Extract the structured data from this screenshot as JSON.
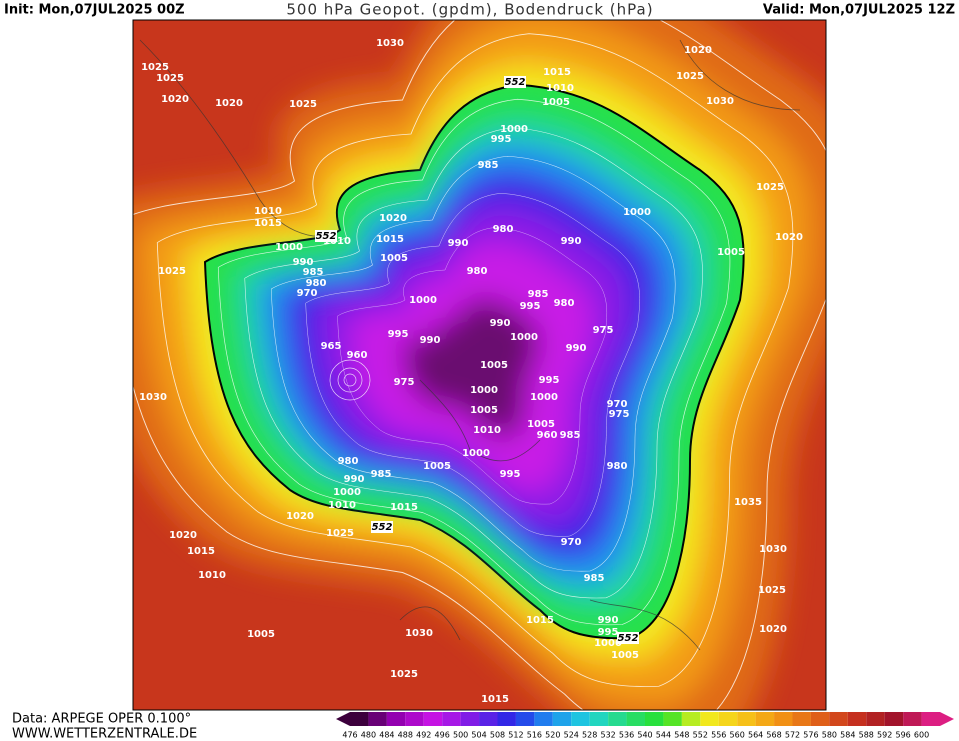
{
  "header": {
    "init": "Init: Mon,07JUL2025 00Z",
    "title": "500 hPa Geopot. (gpdm), Bodendruck (hPa)",
    "valid": "Valid: Mon,07JUL2025 12Z"
  },
  "footer": {
    "source": "Data: ARPEGE OPER 0.100°",
    "site": "WWW.WETTERZENTRALE.DE"
  },
  "colorbar": {
    "labels": [
      476,
      480,
      484,
      488,
      492,
      496,
      500,
      504,
      508,
      512,
      516,
      520,
      524,
      528,
      532,
      536,
      540,
      544,
      548,
      552,
      556,
      560,
      564,
      568,
      572,
      576,
      580,
      584,
      588,
      592,
      596,
      600
    ]
  },
  "map": {
    "isobar_labels": [
      1030,
      1025,
      1025,
      1020,
      1020,
      1025,
      1015,
      1010,
      1005,
      1000,
      995,
      985,
      980,
      990,
      990,
      1000,
      1005,
      1020,
      1025,
      1030,
      1025,
      1020,
      1020,
      1015,
      1005,
      1010,
      1015,
      1010,
      1000,
      990,
      985,
      980,
      970,
      1025,
      980,
      1000,
      985,
      995,
      980,
      990,
      1000,
      975,
      990,
      995,
      990,
      965,
      960,
      975,
      1005,
      995,
      1000,
      1000,
      1005,
      970,
      975,
      1005,
      960,
      985,
      1010,
      1030,
      980,
      990,
      985,
      1005,
      1000,
      995,
      980,
      1000,
      1010,
      1015,
      1020,
      1025,
      1020,
      1015,
      1010,
      970,
      1035,
      1030,
      985,
      1025,
      1020,
      990,
      995,
      1000,
      1005,
      1030,
      1005,
      1025,
      1015,
      1015
    ],
    "height_labels": [
      552,
      552,
      552,
      552
    ]
  }
}
